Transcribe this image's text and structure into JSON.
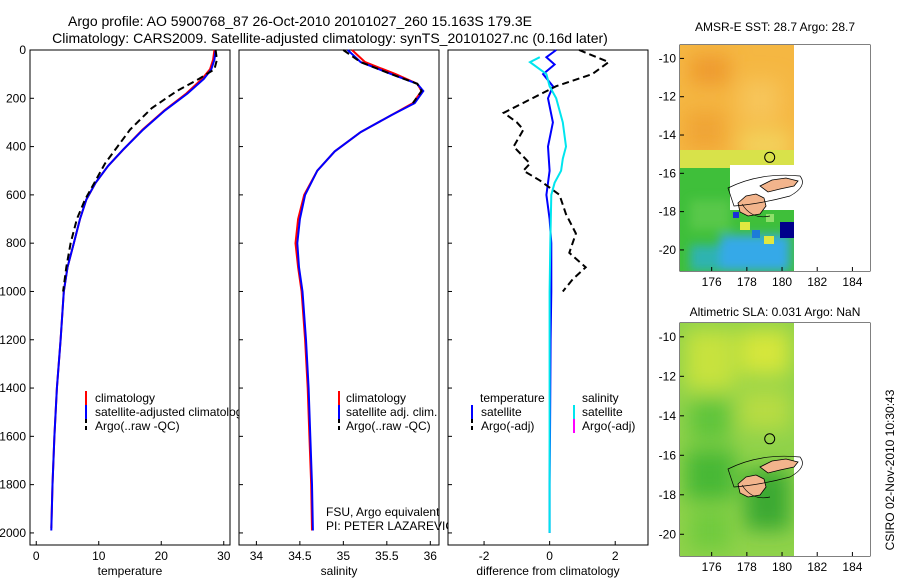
{
  "header": {
    "title_line1": "Argo profile: AO 5900768_87 26-Oct-2010 20101027_260 15.163S 179.3E",
    "title_line2": "Climatology: CARS2009. Satellite-adjusted climatology: synTS_20101027.nc (0.16d later)"
  },
  "colors": {
    "climatology": "#ff0000",
    "satellite": "#0000ff",
    "argo": "#000000",
    "sal_satellite": "#00e5ee",
    "sal_argo": "#ff00ff"
  },
  "chart_data": [
    {
      "type": "line",
      "panel": "temperature",
      "xlabel": "temperature",
      "ylabel": "",
      "xlim": [
        -1,
        31
      ],
      "ylim": [
        2050,
        0
      ],
      "xticks": [
        "0",
        "10",
        "20",
        "30"
      ],
      "yticks": [
        "0",
        "200",
        "400",
        "600",
        "800",
        "1000",
        "1200",
        "1400",
        "1600",
        "1800",
        "2000"
      ],
      "legend": [
        "climatology",
        "satellite-adjusted climatolog",
        "Argo(..raw -QC)"
      ],
      "series": [
        {
          "name": "climatology",
          "color": "#ff0000",
          "dash": "solid",
          "points": [
            [
              28.5,
              0
            ],
            [
              28.3,
              40
            ],
            [
              27.8,
              80
            ],
            [
              26.5,
              120
            ],
            [
              24.0,
              180
            ],
            [
              20.5,
              250
            ],
            [
              17.0,
              330
            ],
            [
              14.0,
              410
            ],
            [
              11.5,
              480
            ],
            [
              9.5,
              550
            ],
            [
              8.0,
              620
            ],
            [
              7.0,
              700
            ],
            [
              6.0,
              800
            ],
            [
              5.0,
              900
            ],
            [
              4.4,
              1000
            ],
            [
              3.9,
              1200
            ],
            [
              3.3,
              1400
            ],
            [
              2.9,
              1600
            ],
            [
              2.6,
              1800
            ],
            [
              2.4,
              1980
            ]
          ]
        },
        {
          "name": "satellite-adjusted climatolog",
          "color": "#0000ff",
          "dash": "solid",
          "points": [
            [
              28.7,
              0
            ],
            [
              28.5,
              40
            ],
            [
              28.0,
              80
            ],
            [
              26.8,
              120
            ],
            [
              24.2,
              180
            ],
            [
              20.6,
              250
            ],
            [
              17.1,
              330
            ],
            [
              14.0,
              410
            ],
            [
              11.5,
              480
            ],
            [
              9.5,
              550
            ],
            [
              8.0,
              620
            ],
            [
              7.0,
              700
            ],
            [
              6.0,
              800
            ],
            [
              5.0,
              900
            ],
            [
              4.4,
              1000
            ],
            [
              3.9,
              1200
            ],
            [
              3.3,
              1400
            ],
            [
              2.9,
              1600
            ],
            [
              2.6,
              1800
            ],
            [
              2.4,
              1990
            ]
          ]
        },
        {
          "name": "Argo(..raw -QC)",
          "color": "#000000",
          "dash": "dashed",
          "points": [
            [
              28.7,
              0
            ],
            [
              28.9,
              40
            ],
            [
              28.5,
              80
            ],
            [
              26.0,
              120
            ],
            [
              22.5,
              170
            ],
            [
              18.5,
              240
            ],
            [
              15.0,
              330
            ],
            [
              13.0,
              400
            ],
            [
              11.0,
              470
            ],
            [
              9.3,
              550
            ],
            [
              7.8,
              620
            ],
            [
              6.5,
              700
            ],
            [
              5.5,
              800
            ],
            [
              4.8,
              900
            ],
            [
              4.3,
              1000
            ]
          ]
        }
      ]
    },
    {
      "type": "line",
      "panel": "salinity",
      "xlabel": "salinity",
      "xlim": [
        33.8,
        36.1
      ],
      "ylim": [
        2050,
        0
      ],
      "xticks": [
        "34",
        "34.5",
        "35",
        "35.5",
        "36"
      ],
      "legend": [
        "climatology",
        "satellite adj. clim.",
        "Argo(..raw -QC)"
      ],
      "series": [
        {
          "name": "climatology",
          "color": "#ff0000",
          "dash": "solid",
          "points": [
            [
              35.1,
              0
            ],
            [
              35.25,
              50
            ],
            [
              35.6,
              100
            ],
            [
              35.85,
              140
            ],
            [
              35.9,
              170
            ],
            [
              35.8,
              220
            ],
            [
              35.55,
              270
            ],
            [
              35.2,
              340
            ],
            [
              34.9,
              420
            ],
            [
              34.7,
              500
            ],
            [
              34.55,
              600
            ],
            [
              34.48,
              700
            ],
            [
              34.45,
              800
            ],
            [
              34.48,
              900
            ],
            [
              34.52,
              1000
            ],
            [
              34.56,
              1200
            ],
            [
              34.59,
              1400
            ],
            [
              34.61,
              1600
            ],
            [
              34.63,
              1800
            ],
            [
              34.64,
              1990
            ]
          ]
        },
        {
          "name": "satellite adj. clim.",
          "color": "#0000ff",
          "dash": "solid",
          "points": [
            [
              35.05,
              0
            ],
            [
              35.2,
              50
            ],
            [
              35.55,
              100
            ],
            [
              35.85,
              140
            ],
            [
              35.92,
              170
            ],
            [
              35.82,
              220
            ],
            [
              35.55,
              270
            ],
            [
              35.2,
              340
            ],
            [
              34.9,
              420
            ],
            [
              34.7,
              500
            ],
            [
              34.56,
              600
            ],
            [
              34.5,
              700
            ],
            [
              34.47,
              800
            ],
            [
              34.49,
              900
            ],
            [
              34.53,
              1000
            ],
            [
              34.57,
              1200
            ],
            [
              34.6,
              1400
            ],
            [
              34.62,
              1600
            ],
            [
              34.64,
              1800
            ],
            [
              34.65,
              1990
            ]
          ]
        },
        {
          "name": "Argo(..raw -QC)",
          "color": "#000000",
          "dash": "dashed",
          "points": [
            [
              35.0,
              0
            ],
            [
              35.2,
              50
            ],
            [
              35.55,
              100
            ],
            [
              35.85,
              140
            ],
            [
              35.9,
              170
            ],
            [
              35.8,
              220
            ]
          ]
        }
      ]
    },
    {
      "type": "line",
      "panel": "difference",
      "xlabel": "difference from climatology",
      "xlim": [
        -3.1,
        3.0
      ],
      "ylim": [
        2050,
        0
      ],
      "xticks": [
        "-2",
        "0",
        "2"
      ],
      "legend_temperature_title": "temperature",
      "legend_salinity_title": "salinity",
      "legend": [
        "satellite",
        "Argo(-adj)",
        "satellite",
        "Argo(-adj)"
      ],
      "series": [
        {
          "name": "satellite",
          "group": "temperature",
          "color": "#0000ff",
          "dash": "solid",
          "points": [
            [
              0.2,
              0
            ],
            [
              -0.1,
              30
            ],
            [
              0.15,
              60
            ],
            [
              -0.2,
              100
            ],
            [
              0.1,
              150
            ],
            [
              -0.05,
              200
            ],
            [
              0.1,
              300
            ],
            [
              -0.05,
              400
            ],
            [
              0.0,
              500
            ],
            [
              -0.1,
              600
            ],
            [
              0.0,
              700
            ],
            [
              0.05,
              800
            ],
            [
              0.05,
              1000
            ],
            [
              0.03,
              1200
            ],
            [
              0.02,
              1400
            ],
            [
              0.01,
              1600
            ],
            [
              0.0,
              1800
            ],
            [
              0.0,
              2000
            ]
          ]
        },
        {
          "name": "Argo(-adj)",
          "group": "temperature",
          "color": "#000000",
          "dash": "dashed",
          "points": [
            [
              0.9,
              0
            ],
            [
              1.8,
              50
            ],
            [
              1.3,
              100
            ],
            [
              0.2,
              150
            ],
            [
              -1.4,
              260
            ],
            [
              -1.0,
              300
            ],
            [
              -0.8,
              330
            ],
            [
              -1.1,
              400
            ],
            [
              -0.6,
              470
            ],
            [
              -0.8,
              500
            ],
            [
              -0.3,
              540
            ],
            [
              0.3,
              600
            ],
            [
              0.5,
              680
            ],
            [
              0.8,
              760
            ],
            [
              0.6,
              840
            ],
            [
              1.1,
              900
            ],
            [
              0.7,
              950
            ],
            [
              0.4,
              1000
            ]
          ]
        },
        {
          "name": "satellite",
          "group": "salinity",
          "color": "#00e5ee",
          "dash": "solid",
          "points": [
            [
              -0.3,
              30
            ],
            [
              -0.6,
              50
            ],
            [
              -0.1,
              100
            ],
            [
              0.0,
              150
            ],
            [
              0.2,
              200
            ],
            [
              0.4,
              300
            ],
            [
              0.5,
              400
            ],
            [
              0.4,
              450
            ],
            [
              0.35,
              500
            ],
            [
              0.15,
              550
            ],
            [
              0.05,
              600
            ],
            [
              0.02,
              800
            ],
            [
              0.0,
              1000
            ],
            [
              0.0,
              1400
            ],
            [
              0.0,
              1800
            ],
            [
              0.0,
              2000
            ]
          ]
        },
        {
          "name": "Argo(-adj)",
          "group": "salinity",
          "color": "#ff00ff",
          "dash": "dashed",
          "points": []
        }
      ]
    },
    {
      "type": "heatmap",
      "panel": "sst_map",
      "title": "AMSR-E SST: 28.7 Argo: 28.7",
      "xlim": [
        174.2,
        185.0
      ],
      "ylim": [
        -21.1,
        -9.3
      ],
      "xticks": [
        "176",
        "178",
        "180",
        "182",
        "184"
      ],
      "yticks": [
        "-10",
        "-12",
        "-14",
        "-16",
        "-18",
        "-20"
      ],
      "argo_marker": {
        "lon": 179.3,
        "lat": -15.163
      }
    },
    {
      "type": "heatmap",
      "panel": "sla_map",
      "title": "Altimetric SLA: 0.031 Argo: NaN",
      "xlim": [
        174.2,
        185.0
      ],
      "ylim": [
        -21.1,
        -9.3
      ],
      "xticks": [
        "176",
        "178",
        "180",
        "182",
        "184"
      ],
      "yticks": [
        "-10",
        "-12",
        "-14",
        "-16",
        "-18",
        "-20"
      ],
      "argo_marker": {
        "lon": 179.3,
        "lat": -15.163
      }
    }
  ],
  "notes": {
    "platform_line1": "FSU, Argo equivalent",
    "platform_line2": "PI: PETER LAZAREVICH",
    "stamp": "CSIRO 02-Nov-2010 10:30:43"
  }
}
